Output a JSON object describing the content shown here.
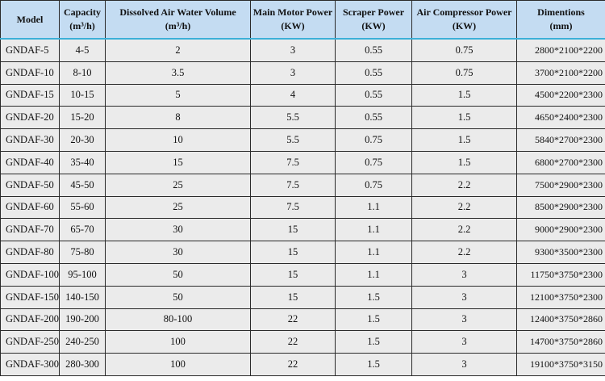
{
  "table": {
    "headers": [
      {
        "line1": "Model",
        "line2": ""
      },
      {
        "line1": "Capacity",
        "line2": "(m³/h)"
      },
      {
        "line1": "Dissolved Air Water Volume",
        "line2": "(m³/h)"
      },
      {
        "line1": "Main Motor Power",
        "line2": "(KW)"
      },
      {
        "line1": "Scraper Power",
        "line2": "(KW)"
      },
      {
        "line1": "Air Compressor Power",
        "line2": "(KW)"
      },
      {
        "line1": "Dimentions",
        "line2": "(mm)"
      }
    ],
    "rows": [
      [
        "GNDAF-5",
        "4-5",
        "2",
        "3",
        "0.55",
        "0.75",
        "2800*2100*2200"
      ],
      [
        "GNDAF-10",
        "8-10",
        "3.5",
        "3",
        "0.55",
        "0.75",
        "3700*2100*2200"
      ],
      [
        "GNDAF-15",
        "10-15",
        "5",
        "4",
        "0.55",
        "1.5",
        "4500*2200*2300"
      ],
      [
        "GNDAF-20",
        "15-20",
        "8",
        "5.5",
        "0.55",
        "1.5",
        "4650*2400*2300"
      ],
      [
        "GNDAF-30",
        "20-30",
        "10",
        "5.5",
        "0.75",
        "1.5",
        "5840*2700*2300"
      ],
      [
        "GNDAF-40",
        "35-40",
        "15",
        "7.5",
        "0.75",
        "1.5",
        "6800*2700*2300"
      ],
      [
        "GNDAF-50",
        "45-50",
        "25",
        "7.5",
        "0.75",
        "2.2",
        "7500*2900*2300"
      ],
      [
        "GNDAF-60",
        "55-60",
        "25",
        "7.5",
        "1.1",
        "2.2",
        "8500*2900*2300"
      ],
      [
        "GNDAF-70",
        "65-70",
        "30",
        "15",
        "1.1",
        "2.2",
        "9000*2900*2300"
      ],
      [
        "GNDAF-80",
        "75-80",
        "30",
        "15",
        "1.1",
        "2.2",
        "9300*3500*2300"
      ],
      [
        "GNDAF-100",
        "95-100",
        "50",
        "15",
        "1.1",
        "3",
        "11750*3750*2300"
      ],
      [
        "GNDAF-150",
        "140-150",
        "50",
        "15",
        "1.5",
        "3",
        "12100*3750*2300"
      ],
      [
        "GNDAF-200",
        "190-200",
        "80-100",
        "22",
        "1.5",
        "3",
        "12400*3750*2860"
      ],
      [
        "GNDAF-250",
        "240-250",
        "100",
        "22",
        "1.5",
        "3",
        "14700*3750*2860"
      ],
      [
        "GNDAF-300",
        "280-300",
        "100",
        "22",
        "1.5",
        "3",
        "19100*3750*3150"
      ]
    ]
  },
  "colors": {
    "header_bg": "#c4dcf2",
    "cell_bg": "#ebebeb",
    "header_rule": "#3bb0d8"
  }
}
